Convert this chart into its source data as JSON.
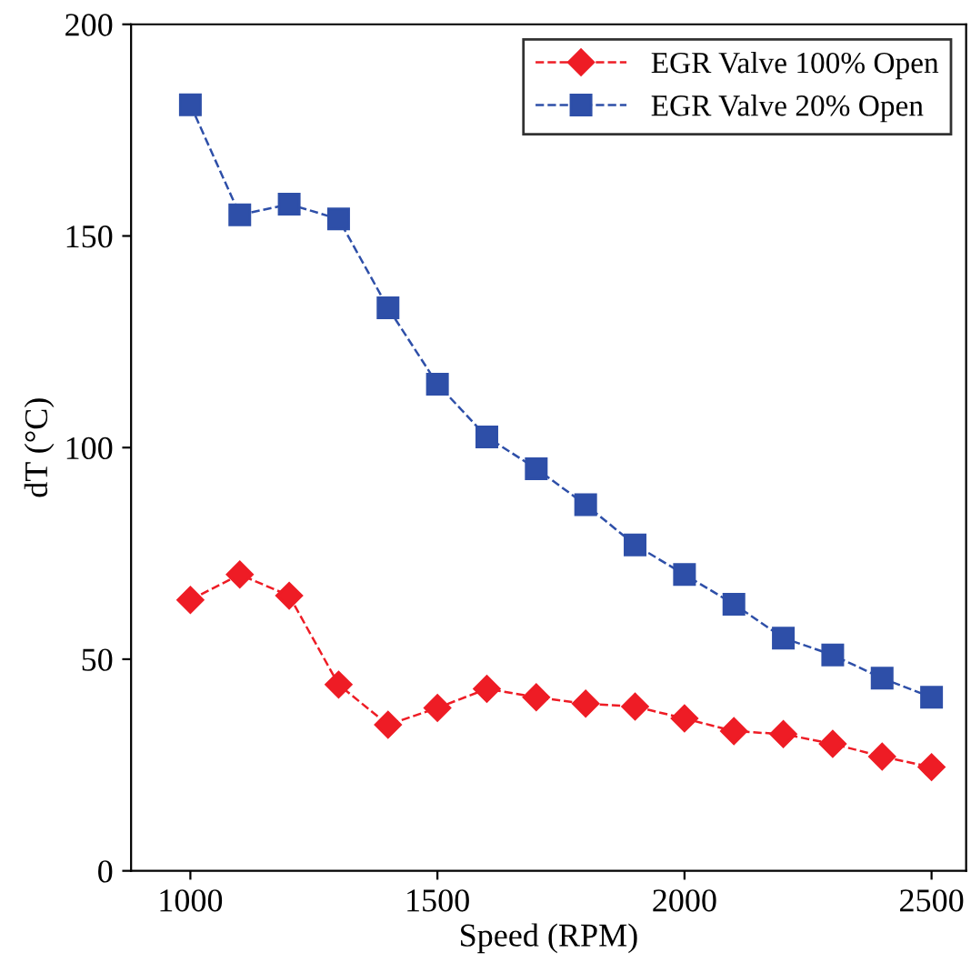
{
  "chart_data": {
    "type": "line",
    "xlabel": "Speed (RPM)",
    "ylabel": "dT (°C)",
    "x": [
      1000,
      1100,
      1200,
      1300,
      1400,
      1500,
      1600,
      1700,
      1800,
      1900,
      2000,
      2100,
      2200,
      2300,
      2400,
      2500
    ],
    "series": [
      {
        "name": "EGR Valve 100% Open",
        "color": "#ee1c25",
        "marker": "diamond",
        "values": [
          64,
          70,
          65,
          44,
          34.5,
          38.5,
          43,
          41,
          39.5,
          38.8,
          36,
          33,
          32.3,
          30,
          27,
          24.5
        ]
      },
      {
        "name": "EGR Valve 20% Open",
        "color": "#2e4fa8",
        "marker": "square",
        "values": [
          181,
          155,
          157.5,
          154,
          133,
          115,
          102.5,
          95,
          86.5,
          77,
          70,
          63,
          55,
          51,
          45.5,
          41
        ]
      }
    ],
    "line_style": "dashed",
    "xlim": [
      880,
      2570
    ],
    "ylim": [
      0,
      200
    ],
    "xticks": [
      1000,
      1500,
      2000,
      2500
    ],
    "yticks": [
      0,
      50,
      100,
      150,
      200
    ],
    "grid": false,
    "legend": "top right"
  }
}
